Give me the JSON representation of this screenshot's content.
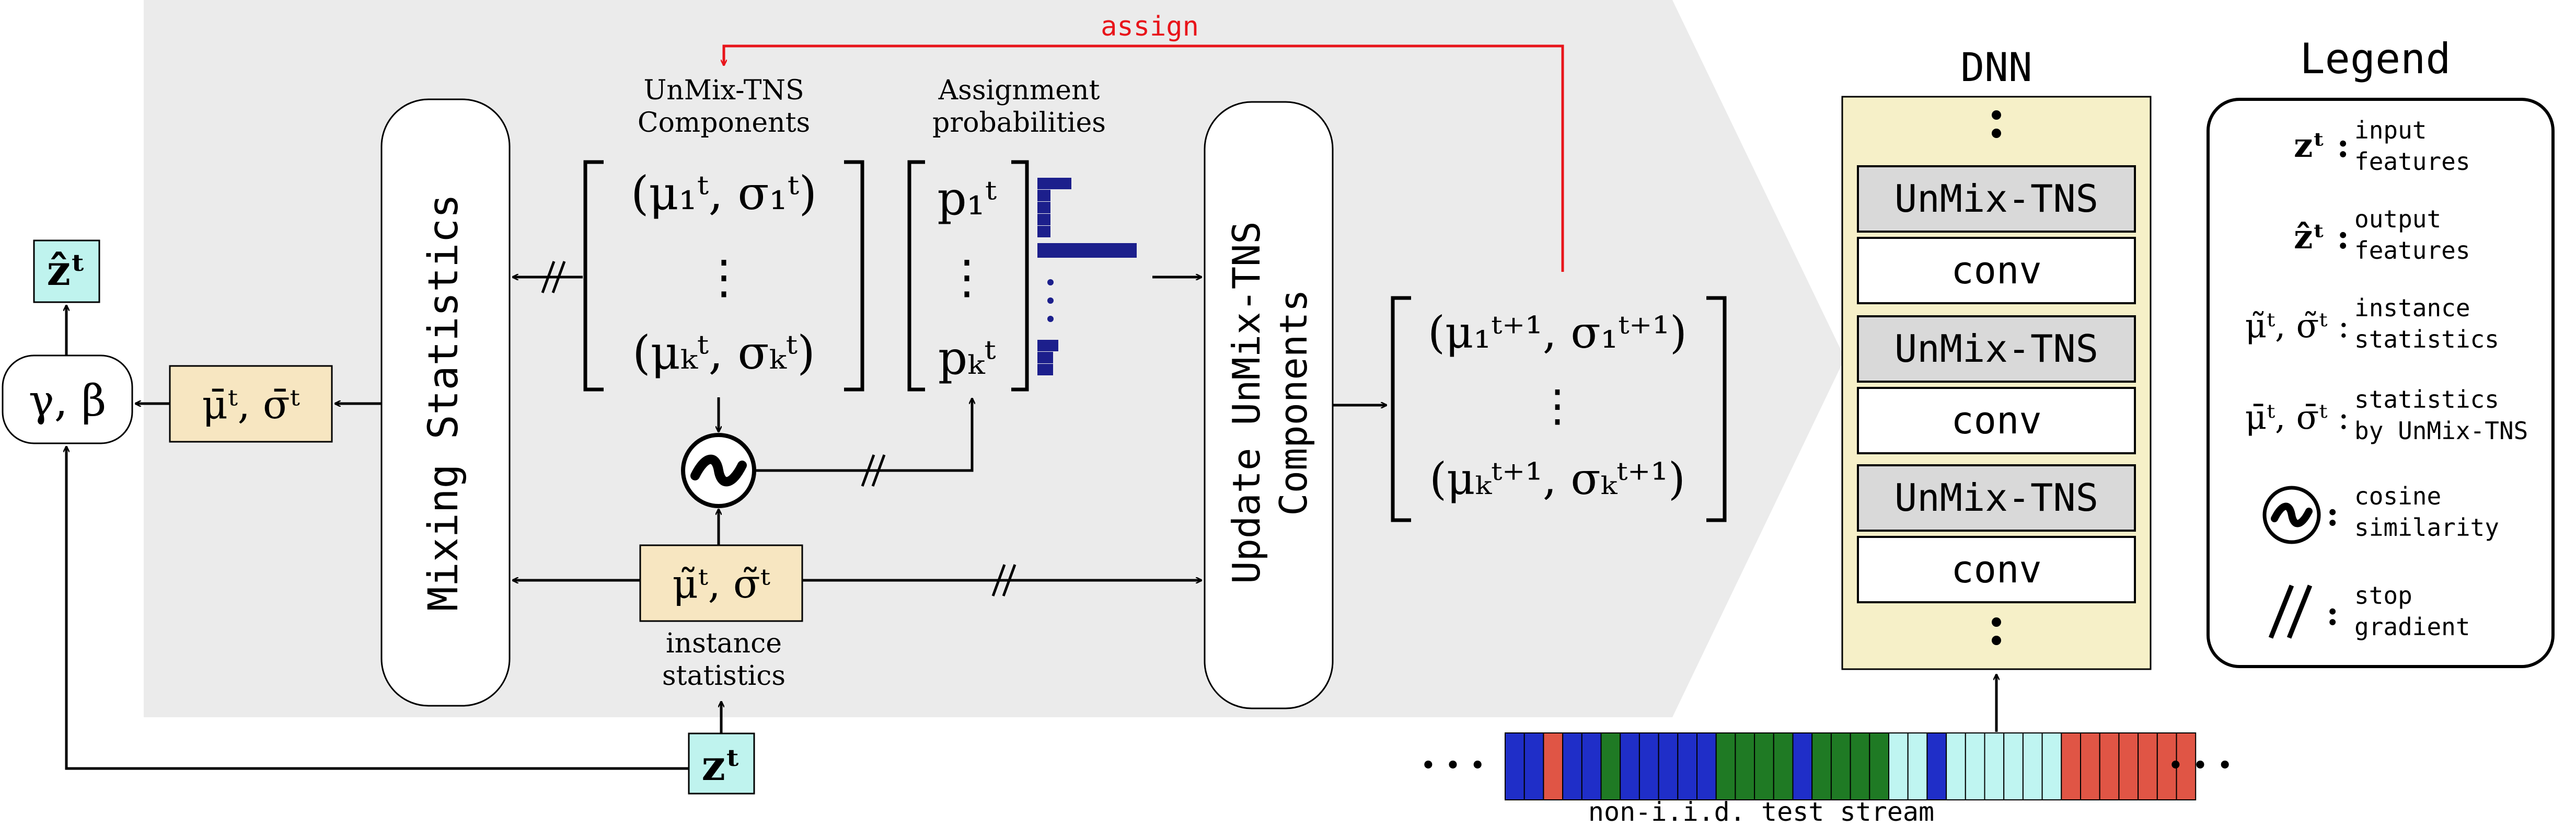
{
  "colors": {
    "background_panel": "#ebebeb",
    "stat_box": "#f7e6c1",
    "feature_box": "#bff3ee",
    "dnn_body": "#f6f0c8",
    "layer_box": "#d9d9d9",
    "assign_arrow": "#e8141a",
    "prob_bars": "#1c1f8c",
    "stream_blue": "#1f2ec8",
    "stream_red": "#e05545",
    "stream_green": "#1f7a24",
    "stream_cyan": "#bff5f1"
  },
  "icons": {
    "cosine": "cosine-similarity-icon",
    "stop_gradient": "stop-gradient-icon"
  },
  "left": {
    "z_hat": "ẑᵗ",
    "gamma_beta": "γ, β",
    "mixed_stats": "μ̄ᵗ, σ̄ᵗ",
    "z_input": "zᵗ"
  },
  "mixing_statistics": "Mixing Statistics",
  "components": {
    "label_line1": "UnMix-TNS",
    "label_line2": "Components",
    "first": "(μ₁ᵗ, σ₁ᵗ)",
    "dots": "⋮",
    "last": "(μₖᵗ, σₖᵗ)"
  },
  "assignment": {
    "label_line1": "Assignment",
    "label_line2": "probabilities",
    "first": "p₁ᵗ",
    "dots": "⋮",
    "last": "pₖᵗ"
  },
  "assign_label": "assign",
  "instance": {
    "value": "μ̃ᵗ, σ̃ᵗ",
    "label_line1": "instance",
    "label_line2": "statistics"
  },
  "update": {
    "line1": "Update UnMix-TNS",
    "line2": "Components"
  },
  "updated_components": {
    "first": "(μ₁ᵗ⁺¹, σ₁ᵗ⁺¹)",
    "dots": "⋮",
    "last": "(μₖᵗ⁺¹, σₖᵗ⁺¹)"
  },
  "dnn": {
    "title": "DNN",
    "layers": [
      "UnMix-TNS",
      "conv",
      "UnMix-TNS",
      "conv",
      "UnMix-TNS",
      "conv"
    ]
  },
  "stream": {
    "label": "non-i.i.d. test stream",
    "ellipsis": "• • •"
  },
  "legend": {
    "title": "Legend",
    "items": [
      {
        "symbol": "zᵗ :",
        "line1": "input",
        "line2": "features"
      },
      {
        "symbol": "ẑᵗ :",
        "line1": "output",
        "line2": "features"
      },
      {
        "symbol": "μ̃ᵗ, σ̃ᵗ :",
        "line1": "instance",
        "line2": "statistics"
      },
      {
        "symbol": "μ̄ᵗ, σ̄ᵗ :",
        "line1": "statistics",
        "line2": "by UnMix-TNS"
      },
      {
        "symbol": ":",
        "line1": "cosine",
        "line2": "similarity"
      },
      {
        "symbol": ":",
        "line1": "stop",
        "line2": "gradient"
      }
    ]
  }
}
